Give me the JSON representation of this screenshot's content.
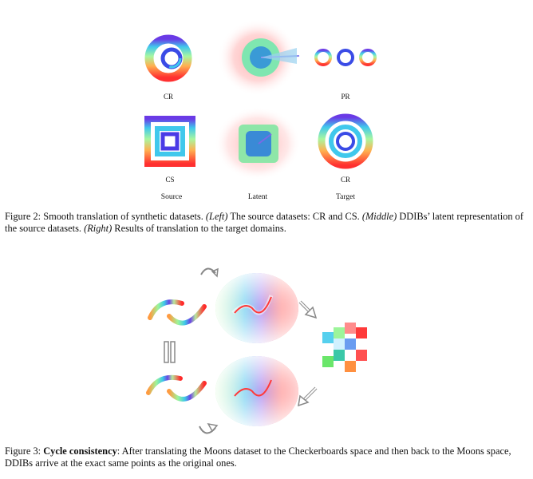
{
  "figure2": {
    "row_labels": [
      "CR",
      "PR",
      "CS",
      "CR"
    ],
    "column_labels": [
      "Source",
      "Latent",
      "Target"
    ],
    "caption": {
      "number": "Figure 2:",
      "lead": " Smooth translation of synthetic datasets. ",
      "left_tag": "(Left)",
      "left_text": " The source datasets: CR and CS. ",
      "middle_tag": "(Middle)",
      "middle_text": " DDIBs’ latent representation of the source datasets. ",
      "right_tag": "(Right)",
      "right_text": " Results of translation to the target domains."
    }
  },
  "figure3": {
    "caption": {
      "number": "Figure 3:",
      "bold": "Cycle consistency",
      "text": ": After translating the Moons dataset to the Checkerboards space and then back to the Moons space, DDIBs arrive at the exact same points as the original ones."
    }
  },
  "colors": {
    "red": "#ff2020",
    "orange": "#ff9a30",
    "green": "#9cf59a",
    "cyan": "#3cc8e8",
    "blue": "#3a4be6",
    "purple": "#8a2fe0",
    "arrow": "#888888"
  }
}
